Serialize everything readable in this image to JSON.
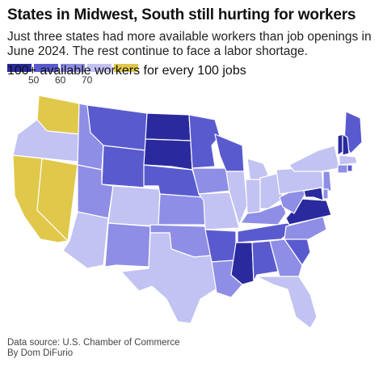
{
  "header": {
    "title": "States in Midwest, South still hurting for workers",
    "subtitle": "Just three states had more available workers than job openings in June 2024. The rest continue to face a labor shortage."
  },
  "legend": {
    "bins": [
      {
        "label": "50",
        "color": "#2a2a9e"
      },
      {
        "label": "60",
        "color": "#5a5acf"
      },
      {
        "label": "70",
        "color": "#8e8ee6"
      },
      {
        "label": "",
        "color": "#c2c2f3"
      },
      {
        "label": "",
        "color": "#e0c84a"
      }
    ],
    "last_label": "100+ available workers\nfor every 100 jobs"
  },
  "colors": {
    "bin1": "#2a2a9e",
    "bin2": "#5a5acf",
    "bin3": "#8e8ee6",
    "bin4": "#c2c2f3",
    "bin5": "#e0c84a"
  },
  "states": {
    "WA": 5,
    "OR": 4,
    "CA": 5,
    "NV": 5,
    "ID": 3,
    "MT": 2,
    "WY": 2,
    "UT": 3,
    "AZ": 4,
    "CO": 4,
    "NM": 3,
    "ND": 1,
    "SD": 1,
    "NE": 2,
    "KS": 3,
    "OK": 3,
    "TX": 4,
    "MN": 2,
    "IA": 3,
    "MO": 4,
    "AR": 2,
    "LA": 3,
    "WI": 2,
    "IL": 4,
    "MS": 1,
    "MI": 4,
    "IN": 4,
    "OH": 4,
    "KY": 3,
    "TN": 2,
    "AL": 2,
    "GA": 3,
    "FL": 4,
    "SC": 2,
    "NC": 3,
    "VA": 1,
    "WV": 3,
    "PA": 4,
    "NY": 4,
    "ME": 2,
    "VT": 1,
    "NH": 1,
    "MA": 4,
    "CT": 3,
    "RI": 2,
    "NJ": 3,
    "MD": 1,
    "DE": 3
  },
  "footer": {
    "source": "Data source: U.S. Chamber of Commerce",
    "byline": "By Dom DiFurio"
  }
}
